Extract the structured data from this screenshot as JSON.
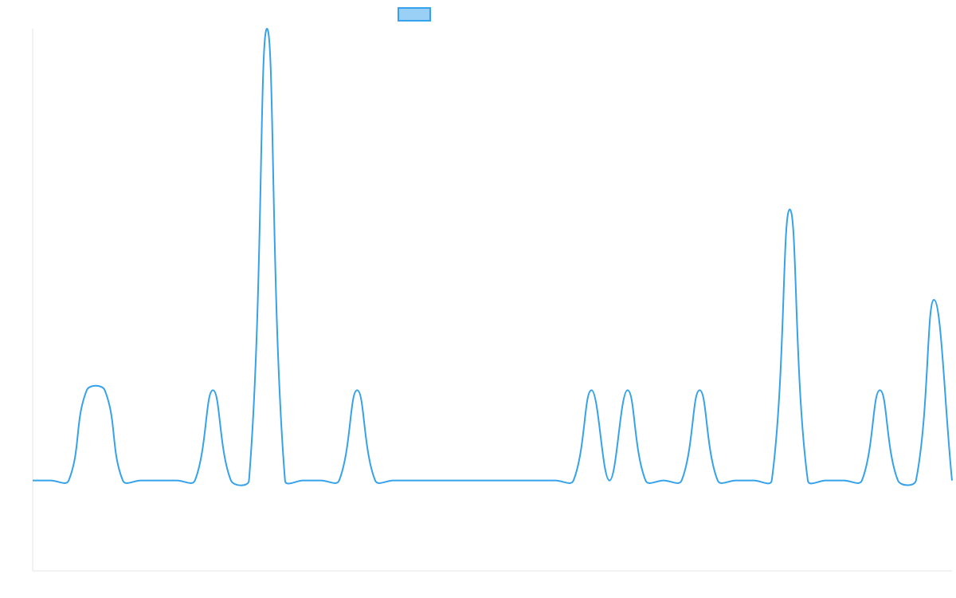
{
  "chart_data": {
    "type": "line",
    "categories": [
      null,
      null,
      null,
      null,
      null,
      null,
      null,
      null,
      null,
      null,
      null,
      null,
      null,
      null,
      null,
      null,
      null,
      null,
      null,
      null,
      null,
      null,
      null,
      null,
      null,
      null,
      null,
      null,
      null,
      null,
      null,
      null,
      null,
      null,
      null,
      null,
      null,
      null,
      null,
      null,
      null,
      null,
      null,
      null,
      null,
      null,
      null,
      null,
      null,
      null,
      null,
      null
    ],
    "values": [
      0,
      0,
      0,
      1,
      1,
      0,
      0,
      0,
      0,
      0,
      1,
      0,
      0,
      5,
      0,
      0,
      0,
      0,
      1,
      0,
      0,
      0,
      0,
      0,
      0,
      0,
      0,
      0,
      0,
      0,
      0,
      1,
      0,
      1,
      0,
      0,
      0,
      1,
      0,
      0,
      0,
      0,
      3,
      0,
      0,
      0,
      0,
      1,
      0,
      0,
      2,
      0
    ],
    "color": "#36a2eb",
    "ylim": [
      -1,
      5
    ],
    "grid": false,
    "legend": "top"
  }
}
